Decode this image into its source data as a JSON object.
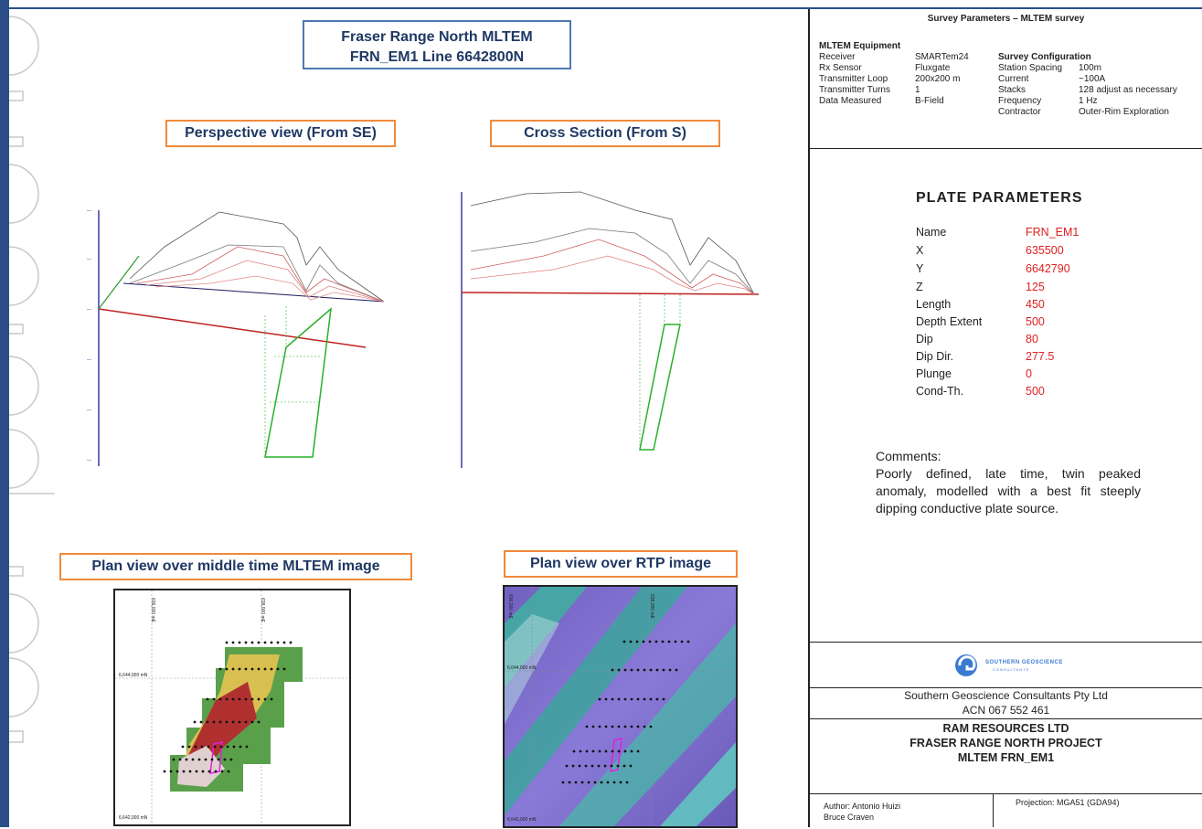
{
  "title": {
    "line1": "Fraser Range North MLTEM",
    "line2": "FRN_EM1 Line 6642800N"
  },
  "labels": {
    "perspective": "Perspective view (From SE)",
    "cross_section": "Cross Section (From S)",
    "plan_mltem": "Plan view over middle time MLTEM image",
    "plan_rtp": "Plan view over RTP image"
  },
  "map_labels": {
    "e1": "636,000 mE",
    "e2": "638,000 mE",
    "n1": "6,644,000 mN",
    "n2": "6,642,000 mN"
  },
  "survey": {
    "title": "Survey Parameters – MLTEM survey",
    "equipment_header": "MLTEM Equipment",
    "equipment": [
      {
        "k": "Receiver",
        "v": "SMARTem24"
      },
      {
        "k": "Rx Sensor",
        "v": "Fluxgate"
      },
      {
        "k": "Transmitter Loop",
        "v": "200x200 m"
      },
      {
        "k": "Transmitter Turns",
        "v": "1"
      },
      {
        "k": "Data Measured",
        "v": "B-Field"
      }
    ],
    "config_header": "Survey Configuration",
    "config": [
      {
        "k": "Station Spacing",
        "v": "100m"
      },
      {
        "k": "Current",
        "v": "~100A"
      },
      {
        "k": "Stacks",
        "v": "128 adjust as necessary"
      },
      {
        "k": "Frequency",
        "v": "1 Hz"
      },
      {
        "k": "Contractor",
        "v": "Outer-Rim Exploration"
      }
    ]
  },
  "plate": {
    "title": "PLATE PARAMETERS",
    "rows": [
      {
        "k": "Name",
        "v": "FRN_EM1"
      },
      {
        "k": "X",
        "v": "635500"
      },
      {
        "k": "Y",
        "v": "6642790"
      },
      {
        "k": "Z",
        "v": "125"
      },
      {
        "k": "Length",
        "v": "450"
      },
      {
        "k": "Depth Extent",
        "v": "500"
      },
      {
        "k": "Dip",
        "v": "80"
      },
      {
        "k": "Dip Dir.",
        "v": "277.5"
      },
      {
        "k": "Plunge",
        "v": "0"
      },
      {
        "k": "Cond-Th.",
        "v": "500"
      }
    ]
  },
  "comments": {
    "label": "Comments:",
    "text": "Poorly defined, late time, twin peaked anomaly, modelled with a best fit steeply dipping conductive plate source."
  },
  "company": {
    "logo_text": "SOUTHERN GEOSCIENCE",
    "logo_sub": "CONSULTANTS",
    "name": "Southern Geoscience Consultants Pty Ltd",
    "acn": "ACN 067 552 461"
  },
  "project": {
    "line1": "RAM RESOURCES LTD",
    "line2": "FRASER RANGE NORTH PROJECT",
    "line3": "MLTEM FRN_EM1"
  },
  "footer": {
    "author": "Author: Antonio Huizi",
    "author2": "Bruce Craven",
    "projection": "Projection: MGA51 (GDA94)"
  },
  "colors": {
    "accent_blue": "#2c4f8a",
    "orange_border": "#ef8a3c",
    "plate_value": "#e02020"
  }
}
